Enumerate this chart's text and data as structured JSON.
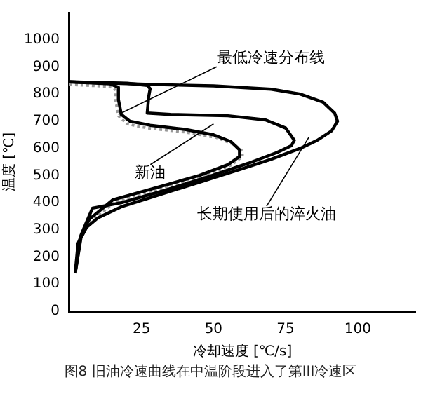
{
  "chart_data": {
    "type": "line",
    "xlabel": "冷却速度 [℃/s]",
    "ylabel": "温度 [℃]",
    "xlim": [
      0,
      120
    ],
    "ylim": [
      0,
      1100
    ],
    "xticks": [
      25,
      50,
      75,
      100
    ],
    "yticks": [
      0,
      100,
      200,
      300,
      400,
      500,
      600,
      700,
      800,
      900,
      1000
    ],
    "grid": false,
    "legend": false,
    "marker": "none",
    "series": [
      {
        "color": "#000000",
        "line_style": "solid",
        "x": [
          0,
          30,
          50,
          70,
          80,
          88,
          92,
          93,
          91,
          86,
          80,
          70,
          60,
          45,
          30,
          18,
          10,
          6,
          4,
          2
        ],
        "values": [
          845,
          835,
          830,
          818,
          800,
          770,
          730,
          700,
          665,
          630,
          600,
          560,
          525,
          475,
          425,
          385,
          345,
          310,
          270,
          140
        ]
      },
      {
        "color": "#000000",
        "line_style": "solid",
        "x": [
          0,
          20,
          27,
          28,
          27.5,
          27,
          35,
          55,
          68,
          75,
          78,
          77,
          72,
          62,
          48,
          33,
          18,
          8,
          6,
          4,
          2
        ],
        "values": [
          845,
          840,
          832,
          820,
          790,
          730,
          725,
          720,
          705,
          675,
          630,
          610,
          585,
          545,
          495,
          445,
          400,
          380,
          330,
          280,
          140
        ]
      },
      {
        "color": "#000000",
        "line_style": "solid",
        "x": [
          0,
          14,
          17,
          17,
          18,
          21,
          28,
          40,
          50,
          56,
          59,
          59,
          55,
          45,
          30,
          15,
          7,
          5,
          3,
          2
        ],
        "values": [
          845,
          838,
          825,
          780,
          725,
          700,
          685,
          670,
          650,
          625,
          595,
          570,
          540,
          500,
          455,
          410,
          340,
          300,
          250,
          140
        ]
      },
      {
        "color": "#999999",
        "line_style": "dotted",
        "x": [
          0,
          14,
          16,
          16,
          17,
          20,
          27,
          40,
          51,
          57,
          60,
          60,
          56,
          46,
          31,
          16,
          8
        ],
        "values": [
          835,
          828,
          815,
          780,
          720,
          690,
          675,
          660,
          640,
          615,
          590,
          570,
          538,
          495,
          450,
          405,
          335
        ]
      }
    ],
    "annotations": [
      {
        "text": "最低冷速分布线",
        "x": 17,
        "y": 725
      },
      {
        "text": "新油",
        "x": 50,
        "y": 690
      },
      {
        "text": "长期使用后的淬火油",
        "x": 83,
        "y": 640
      },
      "图8 旧油冷速曲线在中温阶段进入了第III冷速区"
    ]
  }
}
